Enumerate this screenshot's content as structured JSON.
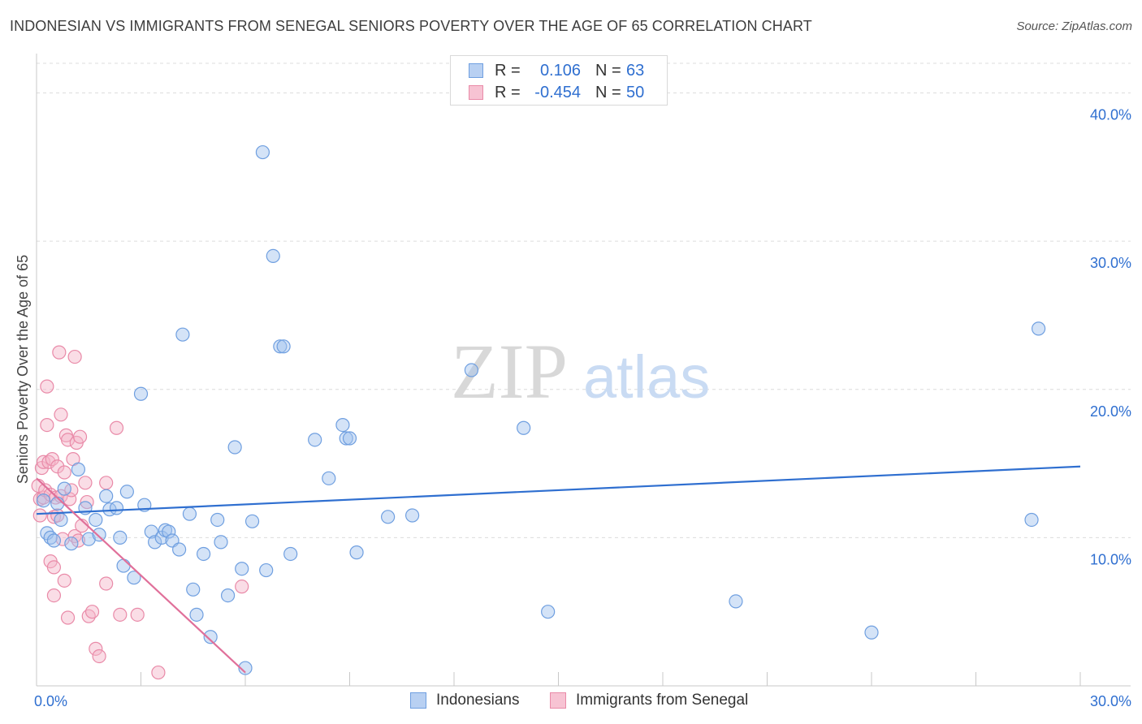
{
  "title": "INDONESIAN VS IMMIGRANTS FROM SENEGAL SENIORS POVERTY OVER THE AGE OF 65 CORRELATION CHART",
  "source": "Source: ZipAtlas.com",
  "watermark": {
    "zip": "ZIP",
    "atlas": "atlas"
  },
  "legend": {
    "r_label": "R =",
    "n_label": "N =",
    "series": [
      {
        "name": "Indonesians",
        "r": "0.106",
        "n": "63",
        "fill": "#b8d0f2",
        "stroke": "#6f9fe0"
      },
      {
        "name": "Immigrants from Senegal",
        "r": "-0.454",
        "n": "50",
        "fill": "#f7c3d3",
        "stroke": "#e98aa8"
      }
    ]
  },
  "colors": {
    "blue_line": "#2f6fd0",
    "pink_line": "#e0709a",
    "blue_point_fill": "rgba(160,192,238,0.45)",
    "blue_point_stroke": "#6f9fe0",
    "pink_point_fill": "rgba(245,180,200,0.45)",
    "pink_point_stroke": "#e98aa8",
    "tick_label": "#2f6fd0",
    "grid": "#dcdcdc"
  },
  "chart_data": {
    "type": "scatter",
    "title": "INDONESIAN VS IMMIGRANTS FROM SENEGAL SENIORS POVERTY OVER THE AGE OF 65 CORRELATION CHART",
    "xlabel": "",
    "ylabel": "Seniors Poverty Over the Age of 65",
    "xlim": [
      0,
      30
    ],
    "ylim": [
      0,
      42
    ],
    "x_tick_labels": [
      {
        "value": 0,
        "label": "0.0%"
      },
      {
        "value": 30,
        "label": "30.0%"
      }
    ],
    "y_tick_labels": [
      {
        "value": 10,
        "label": "10.0%"
      },
      {
        "value": 20,
        "label": "20.0%"
      },
      {
        "value": 30,
        "label": "30.0%"
      },
      {
        "value": 40,
        "label": "40.0%"
      }
    ],
    "x_minor_ticks": [
      3,
      6,
      9,
      12,
      15,
      18,
      21,
      24,
      27,
      30
    ],
    "legend_position": "top-center",
    "series": [
      {
        "name": "Indonesians",
        "trend": {
          "x": [
            0,
            30
          ],
          "y": [
            11.6,
            14.8
          ]
        },
        "points": [
          [
            0.2,
            12.5
          ],
          [
            0.3,
            10.3
          ],
          [
            0.4,
            10.0
          ],
          [
            0.5,
            9.8
          ],
          [
            0.6,
            12.3
          ],
          [
            0.7,
            11.2
          ],
          [
            0.8,
            13.3
          ],
          [
            1.0,
            9.6
          ],
          [
            1.2,
            14.6
          ],
          [
            1.4,
            12.0
          ],
          [
            1.5,
            9.9
          ],
          [
            1.7,
            11.2
          ],
          [
            1.8,
            10.2
          ],
          [
            2.0,
            12.8
          ],
          [
            2.1,
            11.9
          ],
          [
            2.3,
            12.0
          ],
          [
            2.4,
            10.0
          ],
          [
            2.5,
            8.1
          ],
          [
            2.6,
            13.1
          ],
          [
            2.8,
            7.3
          ],
          [
            3.0,
            19.7
          ],
          [
            3.1,
            12.2
          ],
          [
            3.3,
            10.4
          ],
          [
            3.4,
            9.7
          ],
          [
            3.6,
            10.0
          ],
          [
            3.7,
            10.5
          ],
          [
            3.8,
            10.4
          ],
          [
            3.9,
            9.8
          ],
          [
            4.1,
            9.2
          ],
          [
            4.2,
            23.7
          ],
          [
            4.4,
            11.6
          ],
          [
            4.5,
            6.5
          ],
          [
            4.6,
            4.8
          ],
          [
            4.8,
            8.9
          ],
          [
            5.0,
            3.3
          ],
          [
            5.2,
            11.2
          ],
          [
            5.3,
            9.7
          ],
          [
            5.5,
            6.1
          ],
          [
            5.7,
            16.1
          ],
          [
            5.9,
            7.9
          ],
          [
            6.0,
            1.2
          ],
          [
            6.2,
            11.1
          ],
          [
            6.5,
            36.0
          ],
          [
            6.6,
            7.8
          ],
          [
            6.8,
            29.0
          ],
          [
            7.0,
            22.9
          ],
          [
            7.1,
            22.9
          ],
          [
            7.3,
            8.9
          ],
          [
            8.0,
            16.6
          ],
          [
            8.4,
            14.0
          ],
          [
            8.8,
            17.6
          ],
          [
            8.9,
            16.7
          ],
          [
            9.0,
            16.7
          ],
          [
            9.2,
            9.0
          ],
          [
            10.1,
            11.4
          ],
          [
            10.8,
            11.5
          ],
          [
            12.5,
            21.3
          ],
          [
            14.0,
            17.4
          ],
          [
            14.7,
            5.0
          ],
          [
            20.1,
            5.7
          ],
          [
            24.0,
            3.6
          ],
          [
            28.6,
            11.2
          ],
          [
            28.8,
            24.1
          ]
        ]
      },
      {
        "name": "Immigrants from Senegal",
        "trend": {
          "x": [
            0,
            6.0
          ],
          "y": [
            14.0,
            0.9
          ]
        },
        "points": [
          [
            0.05,
            13.5
          ],
          [
            0.1,
            12.6
          ],
          [
            0.1,
            11.5
          ],
          [
            0.15,
            14.7
          ],
          [
            0.2,
            12.7
          ],
          [
            0.2,
            15.1
          ],
          [
            0.25,
            13.2
          ],
          [
            0.3,
            20.2
          ],
          [
            0.3,
            17.6
          ],
          [
            0.35,
            15.1
          ],
          [
            0.4,
            12.9
          ],
          [
            0.4,
            8.4
          ],
          [
            0.45,
            15.3
          ],
          [
            0.5,
            11.4
          ],
          [
            0.5,
            8.0
          ],
          [
            0.5,
            6.1
          ],
          [
            0.55,
            12.7
          ],
          [
            0.6,
            11.5
          ],
          [
            0.6,
            14.8
          ],
          [
            0.65,
            22.5
          ],
          [
            0.7,
            18.3
          ],
          [
            0.7,
            12.8
          ],
          [
            0.75,
            9.9
          ],
          [
            0.8,
            14.4
          ],
          [
            0.8,
            7.1
          ],
          [
            0.85,
            16.9
          ],
          [
            0.9,
            16.6
          ],
          [
            0.9,
            4.6
          ],
          [
            0.95,
            12.6
          ],
          [
            1.0,
            13.2
          ],
          [
            1.05,
            15.3
          ],
          [
            1.1,
            22.2
          ],
          [
            1.1,
            10.1
          ],
          [
            1.15,
            16.4
          ],
          [
            1.2,
            9.8
          ],
          [
            1.25,
            16.8
          ],
          [
            1.3,
            10.8
          ],
          [
            1.4,
            13.7
          ],
          [
            1.5,
            4.7
          ],
          [
            1.6,
            5.0
          ],
          [
            1.7,
            2.5
          ],
          [
            1.8,
            2.0
          ],
          [
            2.0,
            13.7
          ],
          [
            2.0,
            6.9
          ],
          [
            2.3,
            17.4
          ],
          [
            2.4,
            4.8
          ],
          [
            2.9,
            4.8
          ],
          [
            3.5,
            0.9
          ],
          [
            5.9,
            6.7
          ],
          [
            1.45,
            12.4
          ]
        ]
      }
    ]
  }
}
